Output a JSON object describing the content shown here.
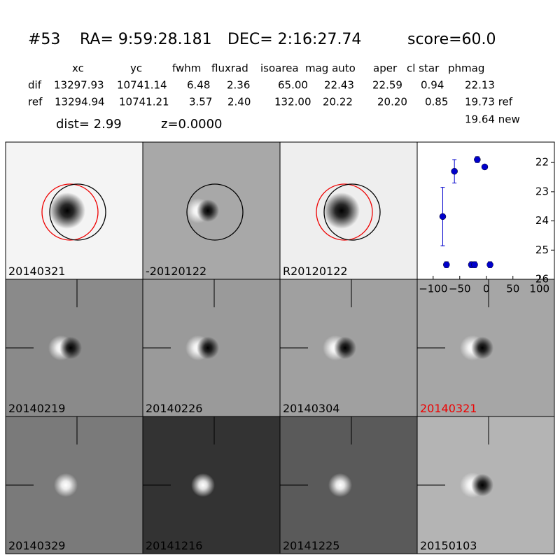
{
  "header": {
    "id": "#53",
    "ra": "RA= 9:59:28.181",
    "dec": "DEC= 2:16:27.74",
    "score": "score=60.0"
  },
  "table": {
    "columns": [
      "xc",
      "yc",
      "fwhm",
      "fluxrad",
      "isoarea",
      "mag auto",
      "aper",
      "cl star",
      "phmag"
    ],
    "rows": [
      [
        "dif",
        "13297.93",
        "10741.14",
        "6.48",
        "2.36",
        "65.00",
        "22.43",
        "22.59",
        "0.94",
        "22.13"
      ],
      [
        "ref",
        "13294.94",
        "10741.21",
        "3.57",
        "2.40",
        "132.00",
        "20.22",
        "20.20",
        "0.85",
        "19.73 ref"
      ]
    ],
    "extra": "19.64 new",
    "dist": "dist=  2.99",
    "z": "z=0.0000"
  },
  "panels": [
    "20140321",
    "-20120122",
    "R20120122",
    "20140219",
    "20140226",
    "20140304",
    "20140321",
    "20140329",
    "20141216",
    "20141225",
    "20150103"
  ],
  "chart_data": {
    "type": "scatter",
    "x": [
      -82,
      -75,
      -60,
      -28,
      -22,
      -17,
      -3,
      7
    ],
    "series": [
      {
        "color": "#0000cc",
        "values": [
          23.85,
          25.5,
          22.3,
          25.5,
          25.5,
          21.9,
          22.15,
          25.5
        ],
        "errors": [
          1.0,
          0.1,
          0.4,
          0.1,
          0.1,
          0.1,
          0.05,
          0.1
        ]
      }
    ],
    "xlim": [
      -130,
      128
    ],
    "ylim": [
      26,
      21.3
    ],
    "xticks": [
      {
        "value": -100,
        "label": "−100"
      },
      {
        "value": -50,
        "label": "−50"
      },
      0,
      50,
      100
    ],
    "yticks": [
      22,
      23,
      24,
      25,
      26
    ]
  }
}
